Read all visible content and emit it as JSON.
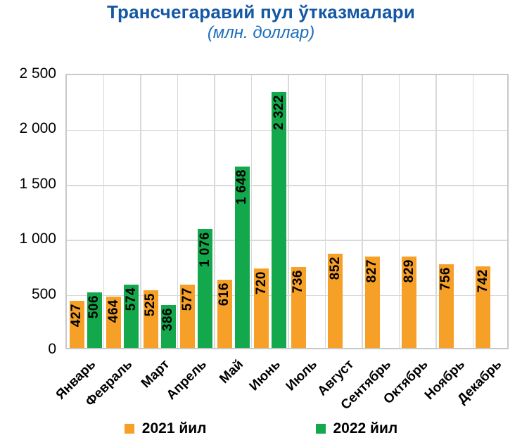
{
  "title": "Трансчегаравий пул ўтказмалари",
  "subtitle": "(млн. доллар)",
  "colors": {
    "title_blue": "#1457A5",
    "subtitle_blue": "#1C6FB8",
    "series_2021_orange": "#F6A028",
    "series_2022_green": "#13A84B",
    "gridline_gray": "#D9D9D9",
    "plot_border_gray": "#C9C9C9",
    "label_black": "#000000"
  },
  "legend": {
    "items": [
      {
        "label": "2021 йил",
        "color": "#F6A028"
      },
      {
        "label": "2022 йил",
        "color": "#13A84B"
      }
    ],
    "position": "bottom"
  },
  "chart_data": {
    "type": "bar",
    "title": "Трансчегаравий пул ўтказмалари",
    "subtitle": "(млн. доллар)",
    "categories": [
      "Январь",
      "Февраль",
      "Март",
      "Апрель",
      "Май",
      "Июнь",
      "Июль",
      "Август",
      "Сентябрь",
      "Октябрь",
      "Ноябрь",
      "Декабрь"
    ],
    "series": [
      {
        "name": "2021 йил",
        "color": "#F6A028",
        "values": [
          427,
          464,
          525,
          577,
          616,
          720,
          736,
          852,
          827,
          829,
          756,
          742
        ]
      },
      {
        "name": "2022 йил",
        "color": "#13A84B",
        "values": [
          506,
          574,
          386,
          1076,
          1648,
          2322,
          null,
          null,
          null,
          null,
          null,
          null
        ]
      }
    ],
    "value_labels": {
      "2021": [
        "427",
        "464",
        "525",
        "577",
        "616",
        "720",
        "736",
        "852",
        "827",
        "829",
        "756",
        "742"
      ],
      "2022": [
        "506",
        "574",
        "386",
        "1 076",
        "1 648",
        "2 322",
        "",
        "",
        "",
        "",
        "",
        ""
      ]
    },
    "ylim": [
      0,
      2500
    ],
    "yticks": [
      0,
      500,
      1000,
      1500,
      2000,
      2500
    ],
    "ytick_labels": [
      "0",
      "500",
      "1 000",
      "1 500",
      "2 000",
      "2 500"
    ],
    "grid": true,
    "legend_position": "bottom"
  }
}
